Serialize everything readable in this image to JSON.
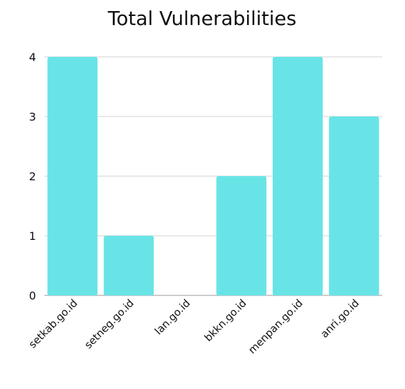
{
  "chart_data": {
    "type": "bar",
    "title": "Total Vulnerabilities",
    "categories": [
      "setkab.go.id",
      "setneg.go.id",
      "lan.go.id",
      "bkkn.go.id",
      "menpan.go.id",
      "anri.go.id"
    ],
    "values": [
      4,
      1,
      0,
      2,
      4,
      3
    ],
    "ylim": [
      0,
      4
    ],
    "yticks": [
      0,
      1,
      2,
      3,
      4
    ],
    "grid": true,
    "bar_color": "#68e4e7"
  }
}
